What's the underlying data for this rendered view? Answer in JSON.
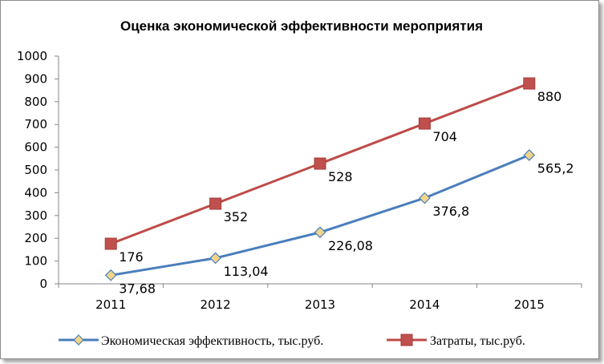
{
  "chart_data": {
    "type": "line",
    "title": "Оценка экономической эффективности мероприятия",
    "categories": [
      "2011",
      "2012",
      "2013",
      "2014",
      "2015"
    ],
    "ylim": [
      0,
      1000
    ],
    "yticks": [
      0,
      100,
      200,
      300,
      400,
      500,
      600,
      700,
      800,
      900,
      1000
    ],
    "grid": false,
    "legend_position": "bottom",
    "series": [
      {
        "name": "Экономическая эффективность, тыс.руб.",
        "values": [
          37.68,
          113.04,
          226.08,
          376.8,
          565.2
        ],
        "labels": [
          "37,68",
          "113,04",
          "226,08",
          "376,8",
          "565,2"
        ],
        "color": "#4a7ebb",
        "marker": "diamond",
        "marker_color": "#f0d58a"
      },
      {
        "name": "Затраты, тыс.руб.",
        "values": [
          176,
          352,
          528,
          704,
          880
        ],
        "labels": [
          "176",
          "352",
          "528",
          "704",
          "880"
        ],
        "color": "#be4b48",
        "marker": "square",
        "marker_color": "#c0504d"
      }
    ]
  }
}
